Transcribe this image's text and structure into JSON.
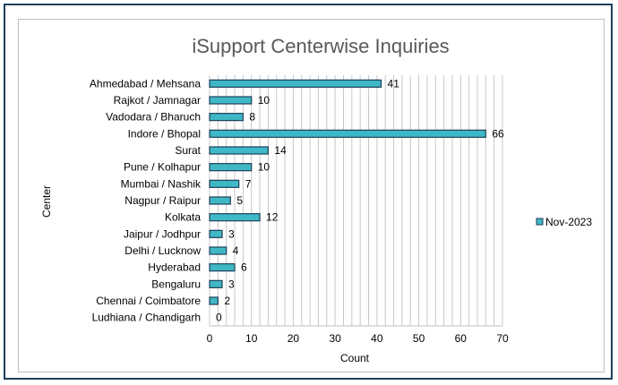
{
  "chart_data": {
    "type": "bar",
    "orientation": "horizontal",
    "title": "iSupport Centerwise Inquiries",
    "xlabel": "Count",
    "ylabel": "Center",
    "categories": [
      "Ahmedabad / Mehsana",
      "Rajkot / Jamnagar",
      "Vadodara / Bharuch",
      "Indore / Bhopal",
      "Surat",
      "Pune / Kolhapur",
      "Mumbai / Nashik",
      "Nagpur / Raipur",
      "Kolkata",
      "Jaipur / Jodhpur",
      "Delhi / Lucknow",
      "Hyderabad",
      "Bengaluru",
      "Chennai / Coimbatore",
      "Ludhiana / Chandigarh"
    ],
    "series": [
      {
        "name": "Nov-2023",
        "values": [
          41,
          10,
          8,
          66,
          14,
          10,
          7,
          5,
          12,
          3,
          4,
          6,
          3,
          2,
          0
        ],
        "color": "#3fb8c6"
      }
    ],
    "xlim": [
      0,
      70
    ],
    "xticks": [
      0,
      10,
      20,
      30,
      40,
      50,
      60,
      70
    ],
    "minor_grid_step": 2,
    "grid": true,
    "legend": "right",
    "bar_color": "#3fb8c6",
    "bar_border_color": "#1f3f5a"
  }
}
